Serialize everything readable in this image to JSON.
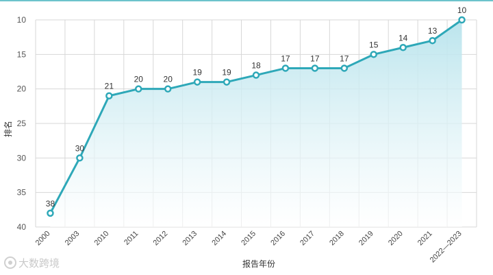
{
  "chart_data": {
    "type": "line",
    "categories": [
      "2000",
      "2003",
      "2010",
      "2011",
      "2012",
      "2013",
      "2014",
      "2015",
      "2016",
      "2017",
      "2018",
      "2019",
      "2020",
      "2021",
      "2022—2023"
    ],
    "series": [
      {
        "values": [
          38,
          30,
          21,
          20,
          20,
          19,
          19,
          18,
          17,
          17,
          17,
          15,
          14,
          13,
          10
        ]
      }
    ],
    "title": "",
    "xlabel": "报告年份",
    "ylabel": "排名",
    "ylim": [
      10,
      40
    ],
    "y_inverted": true,
    "yticks": [
      10,
      15,
      20,
      25,
      30,
      35,
      40
    ],
    "grid": true,
    "legend": "none",
    "data_labels": true,
    "colors": {
      "line": "#2ea8b8",
      "fill_top": "#b7e3ec",
      "fill_bottom": "#ffffff",
      "grid": "#d7d7d7"
    }
  },
  "watermark": {
    "text": "大数跨境"
  }
}
